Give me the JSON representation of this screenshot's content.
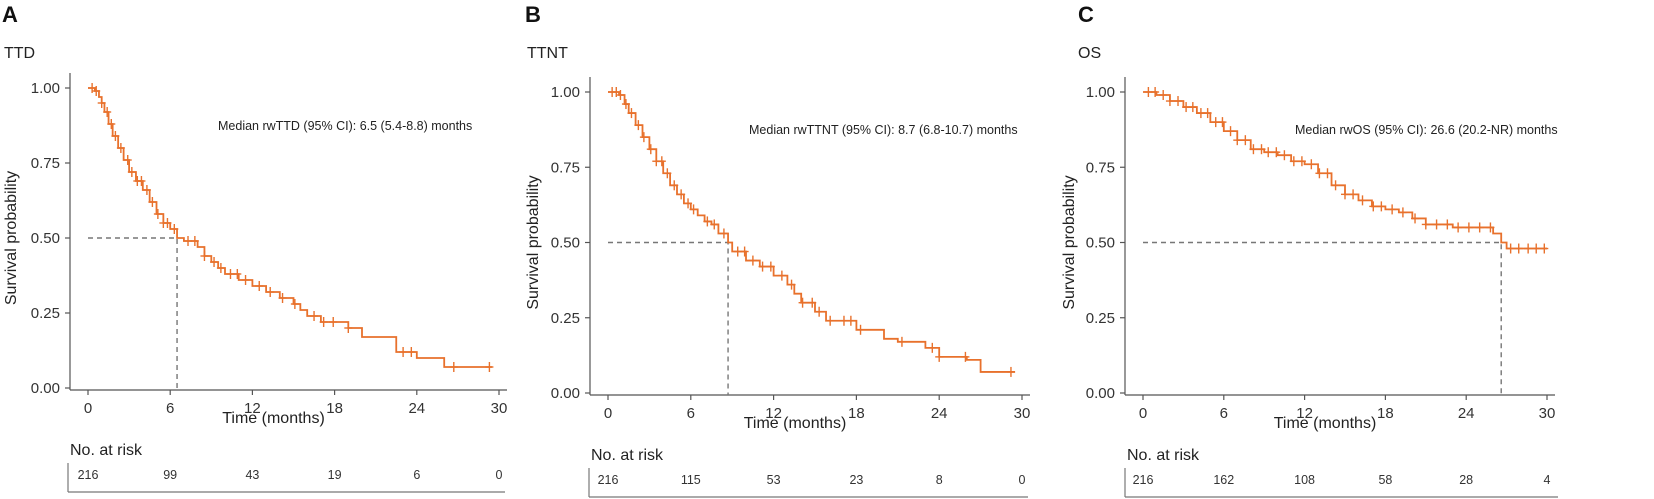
{
  "chart_data": [
    {
      "type": "line",
      "panel": "A",
      "title": "TTD",
      "xlabel": "Time (months)",
      "ylabel": "Survival probability",
      "xlim": [
        0,
        30
      ],
      "ylim": [
        0,
        1
      ],
      "xticks": [
        "0",
        "6",
        "12",
        "18",
        "24",
        "30"
      ],
      "yticks": [
        "0.00",
        "0.25",
        "0.50",
        "0.75",
        "1.00"
      ],
      "median_label": "Median rwTTD (95% CI): 6.5 (5.4-8.8) months",
      "median": 6.5,
      "curve_color": "#e8712c",
      "risk_title": "No. at risk",
      "risk_numbers": [
        "216",
        "99",
        "43",
        "19",
        "6",
        "0"
      ],
      "km_points": [
        [
          0,
          1.0
        ],
        [
          0.5,
          0.99
        ],
        [
          0.8,
          0.97
        ],
        [
          1.0,
          0.95
        ],
        [
          1.2,
          0.92
        ],
        [
          1.5,
          0.88
        ],
        [
          1.8,
          0.84
        ],
        [
          2.2,
          0.8
        ],
        [
          2.6,
          0.76
        ],
        [
          3.0,
          0.72
        ],
        [
          3.5,
          0.69
        ],
        [
          4.0,
          0.66
        ],
        [
          4.5,
          0.62
        ],
        [
          5.0,
          0.58
        ],
        [
          5.5,
          0.55
        ],
        [
          6.0,
          0.53
        ],
        [
          6.5,
          0.5
        ],
        [
          7.0,
          0.49
        ],
        [
          8.0,
          0.47
        ],
        [
          8.5,
          0.44
        ],
        [
          9.0,
          0.42
        ],
        [
          9.5,
          0.4
        ],
        [
          10.0,
          0.38
        ],
        [
          11.0,
          0.36
        ],
        [
          12.0,
          0.34
        ],
        [
          13.0,
          0.32
        ],
        [
          14.0,
          0.3
        ],
        [
          15.0,
          0.28
        ],
        [
          15.5,
          0.26
        ],
        [
          16.0,
          0.24
        ],
        [
          17.0,
          0.22
        ],
        [
          18.0,
          0.22
        ],
        [
          19.0,
          0.2
        ],
        [
          20.0,
          0.17
        ],
        [
          22.5,
          0.12
        ],
        [
          24.0,
          0.1
        ],
        [
          26.0,
          0.07
        ],
        [
          29.5,
          0.07
        ]
      ],
      "censor_times": [
        0.3,
        0.6,
        1.0,
        1.4,
        1.7,
        2.0,
        2.4,
        2.9,
        3.2,
        3.6,
        3.9,
        4.3,
        4.7,
        5.1,
        5.5,
        5.8,
        6.3,
        7.3,
        7.8,
        8.5,
        9.2,
        9.7,
        10.4,
        10.9,
        11.5,
        12.5,
        13.3,
        14.2,
        15.1,
        16.5,
        17.2,
        17.9,
        19.0,
        23.0,
        23.6,
        26.7,
        29.3
      ]
    },
    {
      "type": "line",
      "panel": "B",
      "title": "TTNT",
      "xlabel": "Time (months)",
      "ylabel": "Survival probability",
      "xlim": [
        0,
        30
      ],
      "ylim": [
        0,
        1
      ],
      "xticks": [
        "0",
        "6",
        "12",
        "18",
        "24",
        "30"
      ],
      "yticks": [
        "0.00",
        "0.25",
        "0.50",
        "0.75",
        "1.00"
      ],
      "median_label": "Median rwTTNT (95% CI): 8.7 (6.8-10.7) months",
      "median": 8.7,
      "curve_color": "#e8712c",
      "risk_title": "No. at risk",
      "risk_numbers": [
        "216",
        "115",
        "53",
        "23",
        "8",
        "0"
      ],
      "km_points": [
        [
          0,
          1.0
        ],
        [
          0.8,
          0.99
        ],
        [
          1.2,
          0.96
        ],
        [
          1.5,
          0.93
        ],
        [
          2.0,
          0.89
        ],
        [
          2.5,
          0.85
        ],
        [
          3.0,
          0.81
        ],
        [
          3.5,
          0.77
        ],
        [
          4.0,
          0.73
        ],
        [
          4.5,
          0.69
        ],
        [
          5.0,
          0.66
        ],
        [
          5.5,
          0.63
        ],
        [
          6.0,
          0.61
        ],
        [
          6.5,
          0.59
        ],
        [
          7.0,
          0.57
        ],
        [
          7.5,
          0.56
        ],
        [
          8.0,
          0.53
        ],
        [
          8.7,
          0.5
        ],
        [
          9.0,
          0.47
        ],
        [
          10.0,
          0.44
        ],
        [
          11.0,
          0.42
        ],
        [
          12.0,
          0.39
        ],
        [
          13.0,
          0.36
        ],
        [
          13.5,
          0.33
        ],
        [
          14.0,
          0.3
        ],
        [
          15.0,
          0.27
        ],
        [
          15.8,
          0.24
        ],
        [
          17.0,
          0.24
        ],
        [
          18.0,
          0.21
        ],
        [
          20.0,
          0.18
        ],
        [
          21.0,
          0.17
        ],
        [
          23.0,
          0.15
        ],
        [
          24.0,
          0.12
        ],
        [
          26.0,
          0.11
        ],
        [
          27.0,
          0.07
        ],
        [
          29.5,
          0.07
        ]
      ],
      "censor_times": [
        0.3,
        0.6,
        0.9,
        1.3,
        1.7,
        2.2,
        2.6,
        3.1,
        3.5,
        3.9,
        4.3,
        4.8,
        5.3,
        5.8,
        6.2,
        7.2,
        7.7,
        8.4,
        9.4,
        9.9,
        10.5,
        11.2,
        11.8,
        12.6,
        13.3,
        14.1,
        14.8,
        15.3,
        16.1,
        17.1,
        17.6,
        18.3,
        21.3,
        23.5,
        24.0,
        25.9,
        29.2
      ]
    },
    {
      "type": "line",
      "panel": "C",
      "title": "OS",
      "xlabel": "Time (months)",
      "ylabel": "Survival probability",
      "xlim": [
        0,
        30
      ],
      "ylim": [
        0,
        1
      ],
      "xticks": [
        "0",
        "6",
        "12",
        "18",
        "24",
        "30"
      ],
      "yticks": [
        "0.00",
        "0.25",
        "0.50",
        "0.75",
        "1.00"
      ],
      "median_label": "Median rwOS (95% CI): 26.6 (20.2-NR) months",
      "median": 26.6,
      "curve_color": "#e8712c",
      "risk_title": "No. at risk",
      "risk_numbers": [
        "216",
        "162",
        "108",
        "58",
        "28",
        "4"
      ],
      "km_points": [
        [
          0,
          1.0
        ],
        [
          1.0,
          0.99
        ],
        [
          2.0,
          0.97
        ],
        [
          3.0,
          0.95
        ],
        [
          4.0,
          0.93
        ],
        [
          5.0,
          0.9
        ],
        [
          6.0,
          0.87
        ],
        [
          7.0,
          0.84
        ],
        [
          8.0,
          0.81
        ],
        [
          9.0,
          0.8
        ],
        [
          10.0,
          0.79
        ],
        [
          11.0,
          0.77
        ],
        [
          12.0,
          0.76
        ],
        [
          13.0,
          0.73
        ],
        [
          14.0,
          0.69
        ],
        [
          15.0,
          0.66
        ],
        [
          16.0,
          0.64
        ],
        [
          17.0,
          0.62
        ],
        [
          18.0,
          0.61
        ],
        [
          19.0,
          0.6
        ],
        [
          20.0,
          0.58
        ],
        [
          21.0,
          0.56
        ],
        [
          23.0,
          0.55
        ],
        [
          25.0,
          0.55
        ],
        [
          26.0,
          0.53
        ],
        [
          26.6,
          0.5
        ],
        [
          27.0,
          0.48
        ],
        [
          30.0,
          0.48
        ]
      ],
      "censor_times": [
        0.4,
        0.9,
        1.5,
        2.0,
        2.6,
        3.2,
        3.7,
        4.3,
        4.8,
        5.4,
        5.9,
        6.5,
        7.0,
        7.6,
        8.2,
        8.8,
        9.3,
        9.9,
        10.5,
        11.2,
        11.8,
        12.5,
        13.1,
        13.7,
        14.3,
        15.0,
        15.6,
        16.3,
        17.1,
        17.7,
        18.5,
        19.3,
        20.2,
        21.0,
        21.8,
        22.6,
        23.4,
        24.2,
        25.0,
        25.8,
        27.3,
        27.9,
        28.6,
        29.2,
        29.8
      ]
    }
  ]
}
